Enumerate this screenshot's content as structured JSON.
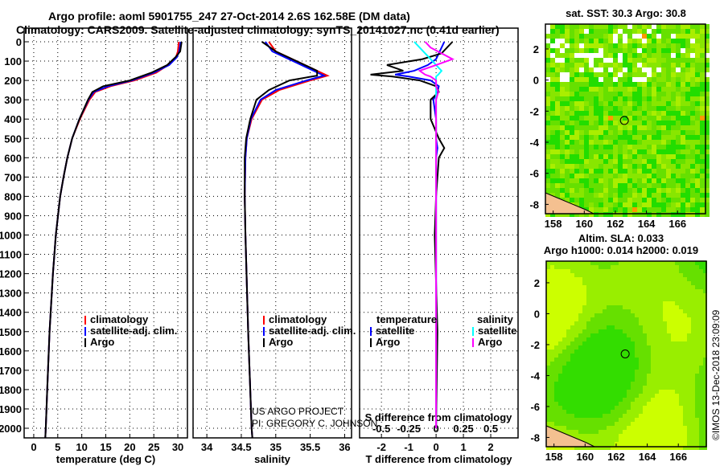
{
  "title_line1": "Argo profile: aoml 5901755_247 27-Oct-2014 2.6S 162.58E (DM data)",
  "title_line2": "Climatology: CARS2009. Satellite-adjusted climatology: synTS_20141027.nc (0.41d earlier)",
  "credit_line1": "US ARGO PROJECT",
  "credit_line2": "PI: GREGORY C. JOHNSON",
  "timestamp": "©IMOS 13-Dec-2018 23:09:09",
  "colors": {
    "climatology": "#ff0000",
    "satellite": "#0000ff",
    "argo": "#000000",
    "sal_satellite": "#00ffff",
    "sal_argo": "#ff00ff"
  },
  "chart_data": [
    {
      "type": "line",
      "name": "temperature",
      "xlabel": "temperature (deg C)",
      "xlim": [
        -2,
        32
      ],
      "ylim": [
        2050,
        -50
      ],
      "xticks": [
        0,
        5,
        10,
        15,
        20,
        25,
        30
      ],
      "yticks": [
        0,
        100,
        200,
        300,
        400,
        500,
        600,
        700,
        800,
        900,
        1000,
        1100,
        1200,
        1300,
        1400,
        1500,
        1600,
        1700,
        1800,
        1900,
        2000
      ],
      "legend": [
        "climatology",
        "satellite-adj. clim.",
        "Argo"
      ],
      "depth": [
        0,
        50,
        80,
        120,
        160,
        200,
        230,
        260,
        300,
        400,
        500,
        600,
        700,
        800,
        1000,
        1200,
        1500,
        1800,
        2000,
        2050
      ],
      "series": [
        {
          "name": "climatology",
          "values": [
            30.2,
            30.0,
            29.6,
            28.0,
            25.5,
            21,
            16,
            12.8,
            11.6,
            9.6,
            8.0,
            7.0,
            6.2,
            5.5,
            4.6,
            4.0,
            3.3,
            2.8,
            2.5,
            2.4
          ]
        },
        {
          "name": "satellite-adj. clim.",
          "values": [
            30.6,
            30.3,
            29.8,
            28.2,
            25.0,
            20.5,
            15.5,
            12.5,
            11.4,
            9.5,
            8.0,
            7.0,
            6.2,
            5.5,
            4.6,
            4.0,
            3.3,
            2.8,
            2.5,
            2.4
          ]
        },
        {
          "name": "Argo",
          "values": [
            30.8,
            30.5,
            29.5,
            27.8,
            24.5,
            20.0,
            14.5,
            12.2,
            11.3,
            9.5,
            8.0,
            7.0,
            6.2,
            5.5,
            4.6,
            4.0,
            3.3,
            2.8,
            2.5,
            2.4
          ]
        }
      ]
    },
    {
      "type": "line",
      "name": "salinity",
      "xlabel": "salinity",
      "xlim": [
        33.8,
        36.1
      ],
      "ylim": [
        2050,
        -50
      ],
      "xticks": [
        34,
        34.5,
        35,
        35.5,
        36
      ],
      "legend": [
        "climatology",
        "satellite-adj. clim.",
        "Argo"
      ],
      "depth": [
        0,
        50,
        100,
        150,
        175,
        200,
        250,
        300,
        400,
        500,
        600,
        800,
        1000,
        1500,
        2000,
        2050
      ],
      "series": [
        {
          "name": "climatology",
          "values": [
            34.9,
            35.0,
            35.3,
            35.6,
            35.75,
            35.5,
            35.05,
            34.8,
            34.65,
            34.58,
            34.56,
            34.55,
            34.56,
            34.6,
            34.65,
            34.66
          ]
        },
        {
          "name": "satellite-adj. clim.",
          "values": [
            34.85,
            34.95,
            35.25,
            35.55,
            35.7,
            35.45,
            35.0,
            34.78,
            34.64,
            34.58,
            34.56,
            34.55,
            34.56,
            34.6,
            34.65,
            34.66
          ]
        },
        {
          "name": "Argo",
          "values": [
            34.8,
            35.0,
            35.3,
            35.6,
            35.6,
            35.2,
            34.9,
            34.72,
            34.63,
            34.57,
            34.55,
            34.55,
            34.56,
            34.6,
            34.65,
            34.66
          ]
        }
      ]
    },
    {
      "type": "line",
      "name": "difference",
      "xlabel": "T difference from climatology",
      "x2label": "S difference from climatology",
      "xlim": [
        -2.8,
        3.0
      ],
      "xticks": [
        -2,
        -1,
        0,
        1,
        2
      ],
      "x2ticks": [
        -0.5,
        -0.25,
        0,
        0.25,
        0.5
      ],
      "legend_t_title": "temperature",
      "legend_s_title": "salinity",
      "legend": [
        "satellite",
        "Argo"
      ],
      "depth": [
        0,
        30,
        60,
        90,
        120,
        150,
        170,
        180,
        200,
        230,
        260,
        300,
        400,
        500,
        550,
        600,
        800,
        1000,
        1500,
        2000
      ],
      "series": [
        {
          "name": "T satellite",
          "values": [
            0.3,
            0.2,
            0.1,
            0.0,
            -0.3,
            -0.8,
            -1.5,
            -1.0,
            -0.2,
            0.1,
            0.05,
            -0.1,
            0.0,
            0.0,
            0.05,
            0.0,
            0.0,
            0.0,
            0.0,
            0.0
          ]
        },
        {
          "name": "T Argo",
          "values": [
            0.6,
            0.4,
            0.2,
            -0.5,
            -1.8,
            -1.2,
            -2.4,
            -1.6,
            -0.6,
            0.0,
            0.1,
            -0.2,
            -0.2,
            0.1,
            0.3,
            0.1,
            0.0,
            -0.05,
            0.05,
            0.0
          ]
        },
        {
          "name": "S satellite",
          "values": [
            -0.2,
            -0.15,
            -0.1,
            -0.05,
            0.0,
            0.05,
            0.02,
            0.0,
            0.0,
            0.0,
            0.0,
            0.0,
            0.0,
            0.0,
            0.0,
            0.0,
            0.0,
            0.0,
            0.0,
            0.0
          ]
        },
        {
          "name": "S Argo",
          "values": [
            -0.1,
            -0.05,
            0.05,
            0.15,
            0.0,
            -0.15,
            -0.1,
            -0.05,
            0.0,
            0.0,
            0.02,
            0.0,
            0.0,
            0.0,
            0.0,
            0.0,
            0.0,
            0.0,
            0.0,
            0.0
          ]
        }
      ]
    },
    {
      "type": "heatmap",
      "name": "sst-map",
      "title": "sat. SST: 30.3 Argo: 30.8",
      "xlim": [
        157.5,
        167.8
      ],
      "ylim": [
        -8.6,
        3.6
      ],
      "xticks": [
        158,
        160,
        162,
        164,
        166
      ],
      "yticks": [
        2,
        0,
        -2,
        -4,
        -6,
        -8
      ],
      "float_lon": 162.58,
      "float_lat": -2.6
    },
    {
      "type": "heatmap",
      "name": "sla-map",
      "title": "Altim. SLA: 0.033",
      "subtitle": "Argo h1000: 0.014 h2000: 0.019",
      "xlim": [
        157.5,
        167.8
      ],
      "ylim": [
        -8.6,
        3.4
      ],
      "xticks": [
        158,
        160,
        162,
        164,
        166
      ],
      "yticks": [
        2,
        0,
        -2,
        -4,
        -6,
        -8
      ],
      "float_lon": 162.58,
      "float_lat": -2.6
    }
  ]
}
